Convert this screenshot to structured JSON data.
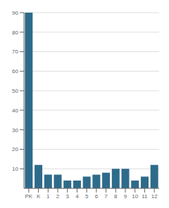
{
  "chart_data": {
    "type": "bar",
    "categories": [
      "PK",
      "K",
      "1",
      "2",
      "3",
      "4",
      "5",
      "6",
      "7",
      "8",
      "9",
      "10",
      "11",
      "12"
    ],
    "values": [
      90,
      12,
      7,
      7,
      4,
      4,
      6,
      7,
      8,
      10,
      10,
      4,
      6,
      12
    ],
    "color": "#2e6b8a",
    "ylim": [
      0,
      90
    ],
    "yticks": [
      10,
      20,
      30,
      40,
      50,
      60,
      70,
      80,
      90
    ],
    "grid": true
  }
}
